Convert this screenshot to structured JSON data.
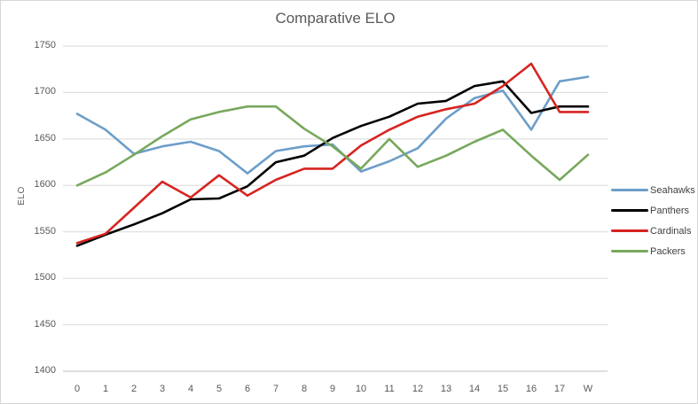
{
  "window": {
    "background": "#ffffff",
    "border_color": "#d6d6d6",
    "gridline_color": "#d9d9d9",
    "axis_line_color": "#bfbfbf",
    "text_color": "#595959"
  },
  "chart_data": {
    "type": "line",
    "title": "Comparative ELO",
    "xlabel": "",
    "ylabel": "ELO",
    "ylim": [
      1400,
      1750
    ],
    "grid": "horizontal",
    "legend_position": "right",
    "x_tick_labels": [
      "0",
      "1",
      "2",
      "3",
      "4",
      "5",
      "6",
      "7",
      "8",
      "9",
      "10",
      "11",
      "12",
      "13",
      "14",
      "15",
      "16",
      "17",
      "W"
    ],
    "y_tick_labels": [
      "1750",
      "1700",
      "1650",
      "1600",
      "1550",
      "1500",
      "1450",
      "1400"
    ],
    "series": [
      {
        "name": "Seahawks",
        "color": "#6d9ec9",
        "values": [
          1677,
          1660,
          1634,
          1642,
          1647,
          1637,
          1613,
          1637,
          1642,
          1644,
          1615,
          1626,
          1640,
          1672,
          1694,
          1702,
          1660,
          1712,
          1717
        ]
      },
      {
        "name": "Panthers",
        "color": "#000000",
        "values": [
          1535,
          1547,
          1558,
          1570,
          1585,
          1586,
          1599,
          1625,
          1632,
          1651,
          1664,
          1674,
          1688,
          1691,
          1707,
          1712,
          1678,
          1685,
          1685
        ]
      },
      {
        "name": "Cardinals",
        "color": "#d62420",
        "values": [
          1538,
          1548,
          1576,
          1604,
          1587,
          1611,
          1589,
          1606,
          1618,
          1618,
          1643,
          1660,
          1674,
          1682,
          1688,
          1707,
          1731,
          1679,
          1679
        ]
      },
      {
        "name": "Packers",
        "color": "#77a85c",
        "values": [
          1600,
          1614,
          1633,
          1653,
          1671,
          1679,
          1685,
          1685,
          1661,
          1642,
          1618,
          1650,
          1620,
          1632,
          1647,
          1660,
          1632,
          1606,
          1633
        ]
      }
    ]
  }
}
